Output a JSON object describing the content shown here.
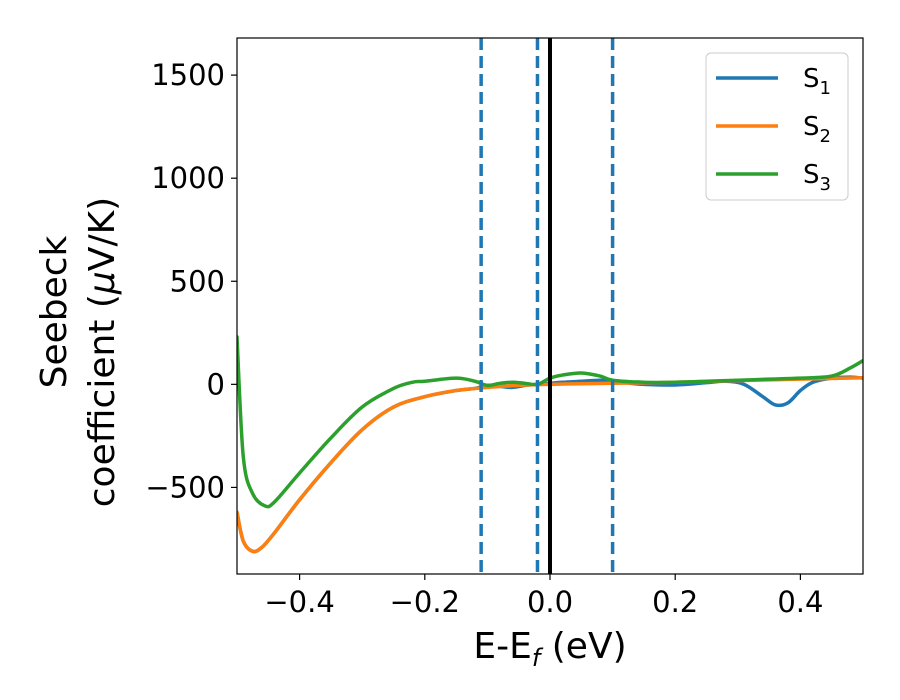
{
  "chart_data": {
    "type": "line",
    "xlabel": "E-E",
    "xlabel_sub": "f",
    "xlabel_unit": " (eV)",
    "ylabel_line1": "Seebeck",
    "ylabel_line2": "coefficient  (",
    "ylabel_mu": "μ",
    "ylabel_unit": "V/K)",
    "xlim": [
      -0.5,
      0.5
    ],
    "ylim": [
      -920,
      1680
    ],
    "xticks": [
      -0.4,
      -0.2,
      0.0,
      0.2,
      0.4
    ],
    "xtick_labels": [
      "−0.4",
      "−0.2",
      "0.0",
      "0.2",
      "0.4"
    ],
    "yticks": [
      -500,
      0,
      500,
      1000,
      1500
    ],
    "ytick_labels": [
      "−500",
      "0",
      "500",
      "1000",
      "1500"
    ],
    "grid": false,
    "legend_position": "top-right",
    "colors": {
      "S1": "#1f77b4",
      "S2": "#ff7f0e",
      "S3": "#2ca02c",
      "fermi": "#000000",
      "marker": "#1f77b4"
    },
    "series": [
      {
        "name": "S",
        "sub": "1",
        "color": "#1f77b4",
        "x": [
          -0.5,
          -0.49,
          -0.475,
          -0.46,
          -0.44,
          -0.4,
          -0.35,
          -0.3,
          -0.25,
          -0.2,
          -0.15,
          -0.12,
          -0.1,
          -0.08,
          -0.06,
          -0.04,
          -0.02,
          0.0,
          0.02,
          0.05,
          0.08,
          0.1,
          0.12,
          0.15,
          0.2,
          0.25,
          0.28,
          0.31,
          0.34,
          0.36,
          0.38,
          0.4,
          0.42,
          0.45,
          0.48,
          0.5
        ],
        "y": [
          -620,
          -760,
          -810,
          -790,
          -720,
          -560,
          -380,
          -220,
          -110,
          -60,
          -30,
          -20,
          -5,
          -10,
          -15,
          -5,
          0,
          5,
          10,
          15,
          20,
          18,
          8,
          0,
          -3,
          8,
          15,
          0,
          -60,
          -100,
          -90,
          -30,
          10,
          30,
          35,
          30
        ]
      },
      {
        "name": "S",
        "sub": "2",
        "color": "#ff7f0e",
        "x": [
          -0.5,
          -0.49,
          -0.475,
          -0.46,
          -0.44,
          -0.4,
          -0.35,
          -0.3,
          -0.25,
          -0.2,
          -0.15,
          -0.1,
          -0.05,
          0.0,
          0.05,
          0.1,
          0.2,
          0.3,
          0.4,
          0.5
        ],
        "y": [
          -620,
          -760,
          -810,
          -790,
          -720,
          -560,
          -380,
          -220,
          -110,
          -60,
          -30,
          -15,
          -5,
          0,
          3,
          5,
          10,
          18,
          25,
          32
        ]
      },
      {
        "name": "S",
        "sub": "3",
        "color": "#2ca02c",
        "x": [
          -0.5,
          -0.49,
          -0.475,
          -0.455,
          -0.44,
          -0.4,
          -0.35,
          -0.3,
          -0.25,
          -0.22,
          -0.2,
          -0.15,
          -0.12,
          -0.1,
          -0.08,
          -0.06,
          -0.04,
          -0.02,
          0.0,
          0.02,
          0.05,
          0.08,
          0.1,
          0.15,
          0.2,
          0.25,
          0.3,
          0.35,
          0.4,
          0.45,
          0.48,
          0.5
        ],
        "y": [
          230,
          -350,
          -530,
          -590,
          -570,
          -430,
          -260,
          -110,
          -20,
          10,
          15,
          30,
          15,
          -5,
          5,
          10,
          5,
          0,
          30,
          45,
          55,
          40,
          20,
          10,
          10,
          15,
          20,
          25,
          30,
          40,
          80,
          115
        ]
      }
    ],
    "vlines_dashed": [
      -0.11,
      -0.02,
      0.1
    ],
    "vline_solid": 0.0
  }
}
